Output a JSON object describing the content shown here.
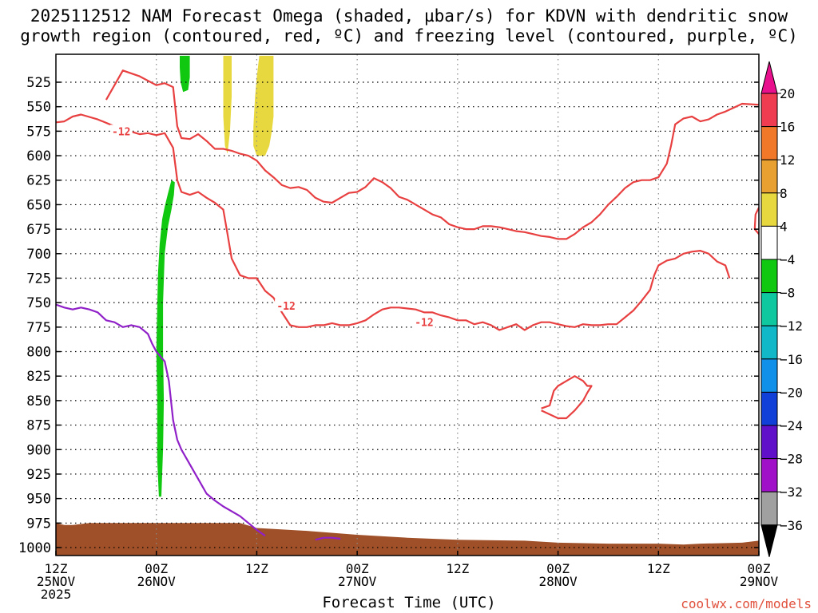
{
  "title": "2025112512 NAM Forecast Omega (shaded, µbar/s) for KDVN with dendritic snow\ngrowth region (contoured, red, ºC) and freezing level (contoured, purple, ºC)",
  "credit": "coolwx.com/models",
  "chart_data": {
    "type": "area",
    "xlabel": "Forecast Time (UTC)",
    "x_unit": "forecast hour from 2025-11-25 12Z",
    "xlim": [
      0,
      84
    ],
    "y_unit": "pressure level (hPa)",
    "ylim": [
      1010,
      500
    ],
    "y_ticks": [
      525,
      550,
      575,
      600,
      625,
      650,
      675,
      700,
      725,
      750,
      775,
      800,
      825,
      850,
      875,
      900,
      925,
      950,
      975,
      1000
    ],
    "x_ticks": [
      {
        "x": 0,
        "lines": [
          "12Z",
          "25NOV",
          "2025"
        ]
      },
      {
        "x": 12,
        "lines": [
          "00Z",
          "26NOV"
        ]
      },
      {
        "x": 24,
        "lines": [
          "12Z"
        ]
      },
      {
        "x": 36,
        "lines": [
          "00Z",
          "27NOV"
        ]
      },
      {
        "x": 48,
        "lines": [
          "12Z"
        ]
      },
      {
        "x": 60,
        "lines": [
          "00Z",
          "28NOV"
        ]
      },
      {
        "x": 72,
        "lines": [
          "12Z"
        ]
      },
      {
        "x": 84,
        "lines": [
          "00Z",
          "29NOV"
        ]
      }
    ],
    "grid": true,
    "colorbar": {
      "labels": [
        "20",
        "16",
        "12",
        "8",
        "4",
        "−4",
        "−8",
        "−12",
        "−16",
        "−20",
        "−24",
        "−28",
        "−32",
        "−36"
      ],
      "colors": [
        "#f03c50",
        "#f07828",
        "#e8a030",
        "#e8d840",
        "#ffffff",
        "#10c810",
        "#10c8a0",
        "#10b8c8",
        "#1090e8",
        "#1040d8",
        "#6010c8",
        "#a010c8",
        "#a0a0a0"
      ],
      "top_color": "#e8108c",
      "bottom_color": "#000000"
    },
    "series": [
      {
        "kind": "contour",
        "color": "#e84040",
        "label": "-12",
        "points": [
          [
            0,
            566
          ],
          [
            1,
            565
          ],
          [
            2,
            560
          ],
          [
            3,
            558
          ],
          [
            5,
            563
          ],
          [
            7,
            570
          ],
          [
            8,
            573
          ],
          [
            10,
            578
          ],
          [
            11,
            577
          ],
          [
            12,
            579
          ],
          [
            13,
            577
          ],
          [
            14,
            592
          ],
          [
            14.5,
            625
          ],
          [
            15,
            637
          ],
          [
            16,
            640
          ],
          [
            17,
            637
          ],
          [
            18,
            643
          ],
          [
            19,
            648
          ],
          [
            20,
            655
          ],
          [
            20.5,
            680
          ],
          [
            21,
            705
          ],
          [
            22,
            722
          ],
          [
            23,
            725
          ],
          [
            24,
            725
          ],
          [
            25,
            738
          ],
          [
            26,
            745
          ],
          [
            27,
            760
          ],
          [
            28,
            773
          ],
          [
            29,
            775
          ],
          [
            30,
            775
          ],
          [
            31,
            773
          ],
          [
            32,
            773
          ],
          [
            33,
            771
          ],
          [
            34,
            773
          ],
          [
            35,
            773
          ],
          [
            36,
            771
          ],
          [
            37,
            768
          ],
          [
            38,
            762
          ],
          [
            39,
            757
          ],
          [
            40,
            755
          ],
          [
            41,
            755
          ],
          [
            42,
            756
          ],
          [
            43,
            757
          ],
          [
            44,
            760
          ],
          [
            45,
            760
          ],
          [
            46,
            763
          ],
          [
            47,
            765
          ],
          [
            48,
            768
          ],
          [
            49,
            768
          ],
          [
            50,
            772
          ],
          [
            51,
            770
          ],
          [
            52,
            773
          ],
          [
            53,
            778
          ],
          [
            54,
            775
          ],
          [
            55,
            772
          ],
          [
            56,
            778
          ],
          [
            57,
            773
          ],
          [
            58,
            770
          ],
          [
            59,
            770
          ],
          [
            60,
            772
          ],
          [
            61,
            774
          ],
          [
            62,
            775
          ],
          [
            63,
            772
          ],
          [
            64,
            773
          ],
          [
            65,
            773
          ],
          [
            66,
            772
          ],
          [
            67,
            772
          ],
          [
            68,
            765
          ],
          [
            69,
            758
          ],
          [
            70,
            748
          ],
          [
            71,
            737
          ],
          [
            71.5,
            722
          ],
          [
            72,
            712
          ],
          [
            73,
            707
          ],
          [
            74,
            705
          ],
          [
            75,
            700
          ],
          [
            76,
            698
          ],
          [
            77,
            697
          ],
          [
            78,
            700
          ],
          [
            79,
            708
          ],
          [
            80,
            712
          ],
          [
            80.5,
            725
          ]
        ]
      },
      {
        "kind": "contour",
        "color": "#e84040",
        "points": [
          [
            6,
            543
          ],
          [
            8,
            513
          ],
          [
            10,
            519
          ],
          [
            12,
            528
          ],
          [
            13,
            526
          ],
          [
            14,
            530
          ],
          [
            14.5,
            570
          ],
          [
            15,
            582
          ],
          [
            16,
            583
          ],
          [
            17,
            578
          ],
          [
            18,
            585
          ],
          [
            19,
            593
          ],
          [
            20,
            593
          ],
          [
            21,
            595
          ],
          [
            22,
            598
          ],
          [
            23,
            600
          ],
          [
            24,
            605
          ],
          [
            25,
            615
          ],
          [
            26,
            622
          ],
          [
            27,
            630
          ],
          [
            28,
            633
          ],
          [
            29,
            632
          ],
          [
            30,
            635
          ],
          [
            31,
            643
          ],
          [
            32,
            647
          ],
          [
            33,
            648
          ],
          [
            34,
            643
          ],
          [
            35,
            638
          ],
          [
            36,
            637
          ],
          [
            37,
            632
          ],
          [
            38,
            623
          ],
          [
            39,
            627
          ],
          [
            40,
            633
          ],
          [
            41,
            642
          ],
          [
            42,
            645
          ],
          [
            43,
            650
          ],
          [
            44,
            655
          ],
          [
            45,
            660
          ],
          [
            46,
            663
          ],
          [
            47,
            670
          ],
          [
            48,
            673
          ],
          [
            49,
            675
          ],
          [
            50,
            675
          ],
          [
            51,
            672
          ],
          [
            52,
            672
          ],
          [
            53,
            673
          ],
          [
            54,
            675
          ],
          [
            55,
            677
          ],
          [
            56,
            678
          ],
          [
            57,
            680
          ],
          [
            58,
            682
          ],
          [
            59,
            683
          ],
          [
            60,
            685
          ],
          [
            61,
            685
          ],
          [
            62,
            680
          ],
          [
            63,
            673
          ],
          [
            64,
            668
          ],
          [
            65,
            660
          ],
          [
            66,
            650
          ],
          [
            67,
            642
          ],
          [
            68,
            633
          ],
          [
            69,
            627
          ],
          [
            70,
            625
          ],
          [
            71,
            625
          ],
          [
            72,
            622
          ],
          [
            73,
            608
          ],
          [
            73.5,
            590
          ],
          [
            74,
            568
          ],
          [
            75,
            562
          ],
          [
            76,
            560
          ],
          [
            77,
            565
          ],
          [
            78,
            563
          ],
          [
            79,
            558
          ],
          [
            80,
            555
          ],
          [
            81,
            551
          ],
          [
            82,
            547
          ],
          [
            84,
            548
          ]
        ]
      },
      {
        "kind": "contour",
        "color": "#e84040",
        "points": [
          [
            84,
            653
          ],
          [
            83.6,
            660
          ],
          [
            83.5,
            675
          ],
          [
            84,
            680
          ]
        ]
      },
      {
        "kind": "contour",
        "color": "#e84040",
        "points": [
          [
            58,
            858
          ],
          [
            59,
            855
          ],
          [
            59.5,
            840
          ],
          [
            60,
            835
          ],
          [
            61,
            830
          ],
          [
            62,
            825
          ],
          [
            63,
            830
          ],
          [
            63.5,
            835
          ],
          [
            64,
            835
          ],
          [
            63.5,
            842
          ],
          [
            63,
            850
          ],
          [
            62,
            860
          ],
          [
            61,
            868
          ],
          [
            60,
            868
          ],
          [
            59,
            864
          ],
          [
            58,
            860
          ]
        ]
      },
      {
        "kind": "contour",
        "color": "#9020c8",
        "points": [
          [
            0,
            752
          ],
          [
            1,
            755
          ],
          [
            2,
            757
          ],
          [
            3,
            755
          ],
          [
            4,
            757
          ],
          [
            5,
            760
          ],
          [
            6,
            768
          ],
          [
            7,
            770
          ],
          [
            8,
            775
          ],
          [
            9,
            773
          ],
          [
            10,
            775
          ],
          [
            11,
            782
          ],
          [
            11.5,
            792
          ],
          [
            12,
            800
          ],
          [
            13,
            810
          ],
          [
            13.5,
            830
          ],
          [
            14,
            870
          ],
          [
            14.5,
            890
          ],
          [
            15,
            900
          ],
          [
            16,
            915
          ],
          [
            17,
            930
          ],
          [
            18,
            945
          ],
          [
            19,
            952
          ],
          [
            20,
            958
          ],
          [
            21,
            963
          ],
          [
            22,
            968
          ],
          [
            23,
            975
          ],
          [
            24,
            982
          ],
          [
            25,
            988
          ]
        ]
      },
      {
        "kind": "contour",
        "color": "#9020c8",
        "points": [
          [
            31,
            992
          ],
          [
            32,
            990
          ],
          [
            33,
            990
          ],
          [
            34,
            991
          ]
        ]
      }
    ],
    "shaded_regions": [
      {
        "kind": "fill",
        "color": "#10c810",
        "points": [
          [
            14.8,
            498
          ],
          [
            16,
            498
          ],
          [
            16,
            520
          ],
          [
            15.8,
            533
          ],
          [
            15.2,
            535
          ],
          [
            14.9,
            525
          ],
          [
            14.8,
            510
          ]
        ]
      },
      {
        "kind": "fill",
        "color": "#10c810",
        "points": [
          [
            13.8,
            625
          ],
          [
            14.2,
            627
          ],
          [
            14.1,
            640
          ],
          [
            13.8,
            655
          ],
          [
            13.4,
            672
          ],
          [
            13,
            700
          ],
          [
            12.8,
            750
          ],
          [
            12.8,
            800
          ],
          [
            12.9,
            850
          ],
          [
            12.8,
            900
          ],
          [
            12.6,
            948
          ],
          [
            12.3,
            948
          ],
          [
            12.1,
            910
          ],
          [
            12.1,
            850
          ],
          [
            12,
            800
          ],
          [
            12.1,
            755
          ],
          [
            12.2,
            720
          ],
          [
            12.4,
            690
          ],
          [
            12.7,
            665
          ],
          [
            13,
            652
          ],
          [
            13.4,
            638
          ]
        ]
      },
      {
        "kind": "fill",
        "color": "#e8d840",
        "points": [
          [
            20,
            498
          ],
          [
            21,
            498
          ],
          [
            21,
            540
          ],
          [
            20.8,
            575
          ],
          [
            20.5,
            598
          ],
          [
            20.2,
            590
          ],
          [
            20,
            560
          ]
        ]
      },
      {
        "kind": "fill",
        "color": "#e8d840",
        "points": [
          [
            24.3,
            498
          ],
          [
            26,
            498
          ],
          [
            26,
            560
          ],
          [
            25.8,
            575
          ],
          [
            25.5,
            590
          ],
          [
            25,
            600
          ],
          [
            24,
            600
          ],
          [
            23.6,
            590
          ],
          [
            23.6,
            570
          ],
          [
            23.8,
            540
          ],
          [
            24,
            520
          ]
        ]
      },
      {
        "kind": "fill",
        "color": "#a05028",
        "points": [
          [
            0,
            975
          ],
          [
            1,
            977
          ],
          [
            2,
            977
          ],
          [
            4,
            975
          ],
          [
            10,
            975
          ],
          [
            20,
            975
          ],
          [
            22,
            975
          ],
          [
            24,
            980
          ],
          [
            30,
            983
          ],
          [
            36,
            987
          ],
          [
            42,
            990
          ],
          [
            48,
            992
          ],
          [
            56,
            993
          ],
          [
            60,
            995
          ],
          [
            66,
            996
          ],
          [
            72,
            996
          ],
          [
            75,
            997
          ],
          [
            77,
            996
          ],
          [
            82,
            995
          ],
          [
            84,
            993
          ],
          [
            84,
            1010
          ],
          [
            0,
            1010
          ]
        ]
      }
    ],
    "contour_labels": [
      {
        "x": 7.8,
        "y": 575,
        "text": "-12"
      },
      {
        "x": 27.5,
        "y": 753,
        "text": "-12"
      },
      {
        "x": 44,
        "y": 770,
        "text": "-12"
      }
    ]
  }
}
